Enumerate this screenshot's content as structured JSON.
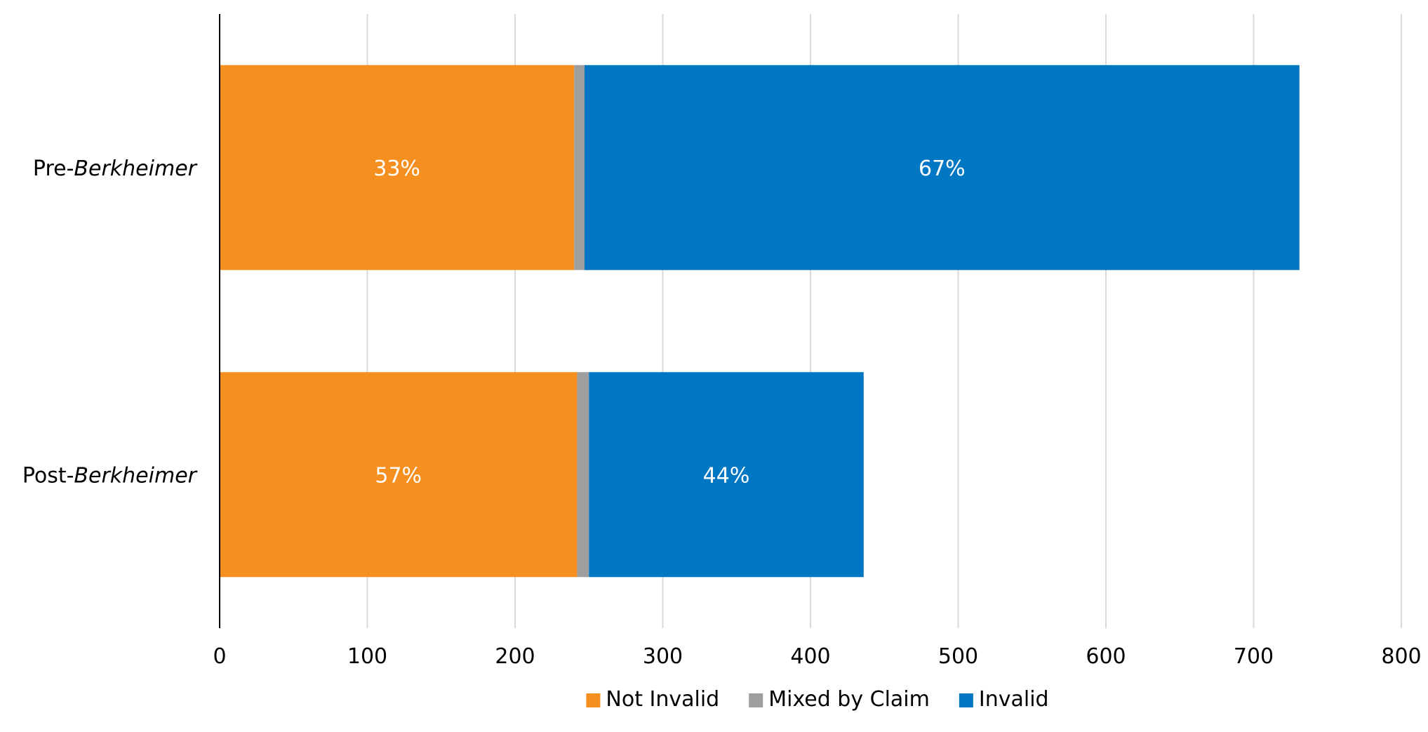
{
  "chart_data": {
    "type": "bar",
    "orientation": "horizontal",
    "stacked": true,
    "title": "",
    "xlabel": "",
    "ylabel": "",
    "xlim": [
      0,
      800
    ],
    "x_ticks": [
      0,
      100,
      200,
      300,
      400,
      500,
      600,
      700,
      800
    ],
    "grid": true,
    "legend_position": "bottom",
    "categories": [
      {
        "prefix": "Pre-",
        "emphasis": "Berkheimer"
      },
      {
        "prefix": "Post-",
        "emphasis": "Berkheimer"
      }
    ],
    "series": [
      {
        "name": "Not Invalid",
        "color": "#f58f1f",
        "values": [
          240,
          242
        ],
        "labels": [
          "33%",
          "57%"
        ]
      },
      {
        "name": "Mixed by Claim",
        "color": "#9e9e9e",
        "values": [
          7,
          8
        ],
        "labels": [
          "",
          ""
        ]
      },
      {
        "name": "Invalid",
        "color": "#0077c2",
        "values": [
          484,
          186
        ],
        "labels": [
          "67%",
          "44%"
        ]
      }
    ]
  }
}
